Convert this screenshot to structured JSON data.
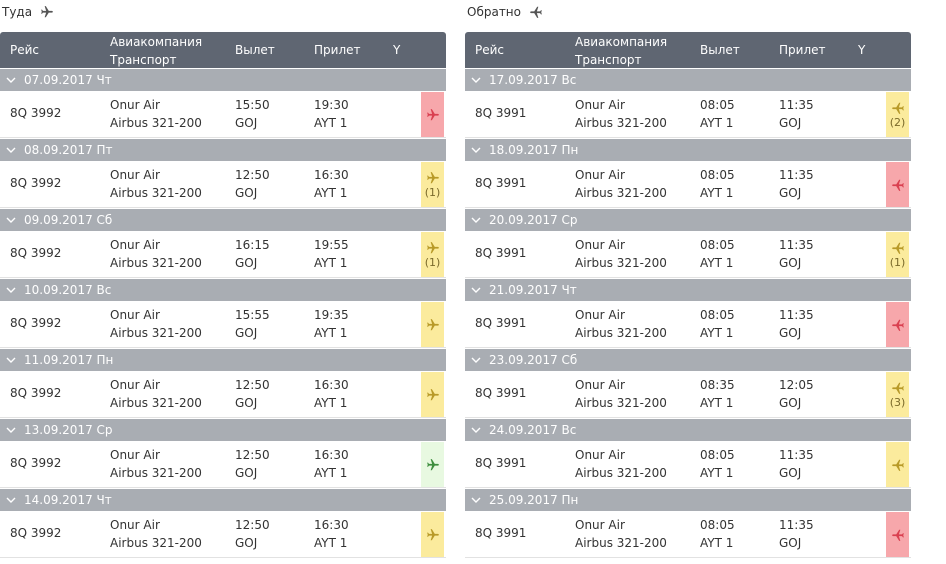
{
  "colors": {
    "header_bg": "#5f6672",
    "day_bg": "#a9adb3",
    "seat_red": "#f7a7ab",
    "seat_yellow": "#fbeb9d",
    "seat_green": "#e8f9e1",
    "plane_red": "#d94050",
    "plane_yellow": "#b89a28",
    "plane_green": "#3e8e3e"
  },
  "outbound": {
    "title": "Туда",
    "columns": {
      "flight": "Рейс",
      "airline_line1": "Авиакомпания",
      "airline_line2": "Транспорт",
      "departure": "Вылет",
      "arrival": "Прилет",
      "class": "Y"
    },
    "days": [
      {
        "date": "07.09.2017 Чт",
        "flight": "8Q 3992",
        "airline": "Onur Air",
        "aircraft": "Airbus 321-200",
        "dep_time": "15:50",
        "dep_airport": "GOJ",
        "arr_time": "19:30",
        "arr_airport": "AYT 1",
        "status": "red",
        "seats": ""
      },
      {
        "date": "08.09.2017 Пт",
        "flight": "8Q 3992",
        "airline": "Onur Air",
        "aircraft": "Airbus 321-200",
        "dep_time": "12:50",
        "dep_airport": "GOJ",
        "arr_time": "16:30",
        "arr_airport": "AYT 1",
        "status": "yellow",
        "seats": "(1)"
      },
      {
        "date": "09.09.2017 Сб",
        "flight": "8Q 3992",
        "airline": "Onur Air",
        "aircraft": "Airbus 321-200",
        "dep_time": "16:15",
        "dep_airport": "GOJ",
        "arr_time": "19:55",
        "arr_airport": "AYT 1",
        "status": "yellow",
        "seats": "(1)"
      },
      {
        "date": "10.09.2017 Вс",
        "flight": "8Q 3992",
        "airline": "Onur Air",
        "aircraft": "Airbus 321-200",
        "dep_time": "15:55",
        "dep_airport": "GOJ",
        "arr_time": "19:35",
        "arr_airport": "AYT 1",
        "status": "yellow",
        "seats": ""
      },
      {
        "date": "11.09.2017 Пн",
        "flight": "8Q 3992",
        "airline": "Onur Air",
        "aircraft": "Airbus 321-200",
        "dep_time": "12:50",
        "dep_airport": "GOJ",
        "arr_time": "16:30",
        "arr_airport": "AYT 1",
        "status": "yellow",
        "seats": ""
      },
      {
        "date": "13.09.2017 Ср",
        "flight": "8Q 3992",
        "airline": "Onur Air",
        "aircraft": "Airbus 321-200",
        "dep_time": "12:50",
        "dep_airport": "GOJ",
        "arr_time": "16:30",
        "arr_airport": "AYT 1",
        "status": "green",
        "seats": ""
      },
      {
        "date": "14.09.2017 Чт",
        "flight": "8Q 3992",
        "airline": "Onur Air",
        "aircraft": "Airbus 321-200",
        "dep_time": "12:50",
        "dep_airport": "GOJ",
        "arr_time": "16:30",
        "arr_airport": "AYT 1",
        "status": "yellow",
        "seats": ""
      }
    ]
  },
  "inbound": {
    "title": "Обратно",
    "columns": {
      "flight": "Рейс",
      "airline_line1": "Авиакомпания",
      "airline_line2": "Транспорт",
      "departure": "Вылет",
      "arrival": "Прилет",
      "class": "Y"
    },
    "days": [
      {
        "date": "17.09.2017 Вс",
        "flight": "8Q 3991",
        "airline": "Onur Air",
        "aircraft": "Airbus 321-200",
        "dep_time": "08:05",
        "dep_airport": "AYT 1",
        "arr_time": "11:35",
        "arr_airport": "GOJ",
        "status": "yellow",
        "seats": "(2)"
      },
      {
        "date": "18.09.2017 Пн",
        "flight": "8Q 3991",
        "airline": "Onur Air",
        "aircraft": "Airbus 321-200",
        "dep_time": "08:05",
        "dep_airport": "AYT 1",
        "arr_time": "11:35",
        "arr_airport": "GOJ",
        "status": "red",
        "seats": ""
      },
      {
        "date": "20.09.2017 Ср",
        "flight": "8Q 3991",
        "airline": "Onur Air",
        "aircraft": "Airbus 321-200",
        "dep_time": "08:05",
        "dep_airport": "AYT 1",
        "arr_time": "11:35",
        "arr_airport": "GOJ",
        "status": "yellow",
        "seats": "(1)"
      },
      {
        "date": "21.09.2017 Чт",
        "flight": "8Q 3991",
        "airline": "Onur Air",
        "aircraft": "Airbus 321-200",
        "dep_time": "08:05",
        "dep_airport": "AYT 1",
        "arr_time": "11:35",
        "arr_airport": "GOJ",
        "status": "red",
        "seats": ""
      },
      {
        "date": "23.09.2017 Сб",
        "flight": "8Q 3991",
        "airline": "Onur Air",
        "aircraft": "Airbus 321-200",
        "dep_time": "08:35",
        "dep_airport": "AYT 1",
        "arr_time": "12:05",
        "arr_airport": "GOJ",
        "status": "yellow",
        "seats": "(3)"
      },
      {
        "date": "24.09.2017 Вс",
        "flight": "8Q 3991",
        "airline": "Onur Air",
        "aircraft": "Airbus 321-200",
        "dep_time": "08:05",
        "dep_airport": "AYT 1",
        "arr_time": "11:35",
        "arr_airport": "GOJ",
        "status": "yellow",
        "seats": ""
      },
      {
        "date": "25.09.2017 Пн",
        "flight": "8Q 3991",
        "airline": "Onur Air",
        "aircraft": "Airbus 321-200",
        "dep_time": "08:05",
        "dep_airport": "AYT 1",
        "arr_time": "11:35",
        "arr_airport": "GOJ",
        "status": "red",
        "seats": ""
      }
    ]
  }
}
